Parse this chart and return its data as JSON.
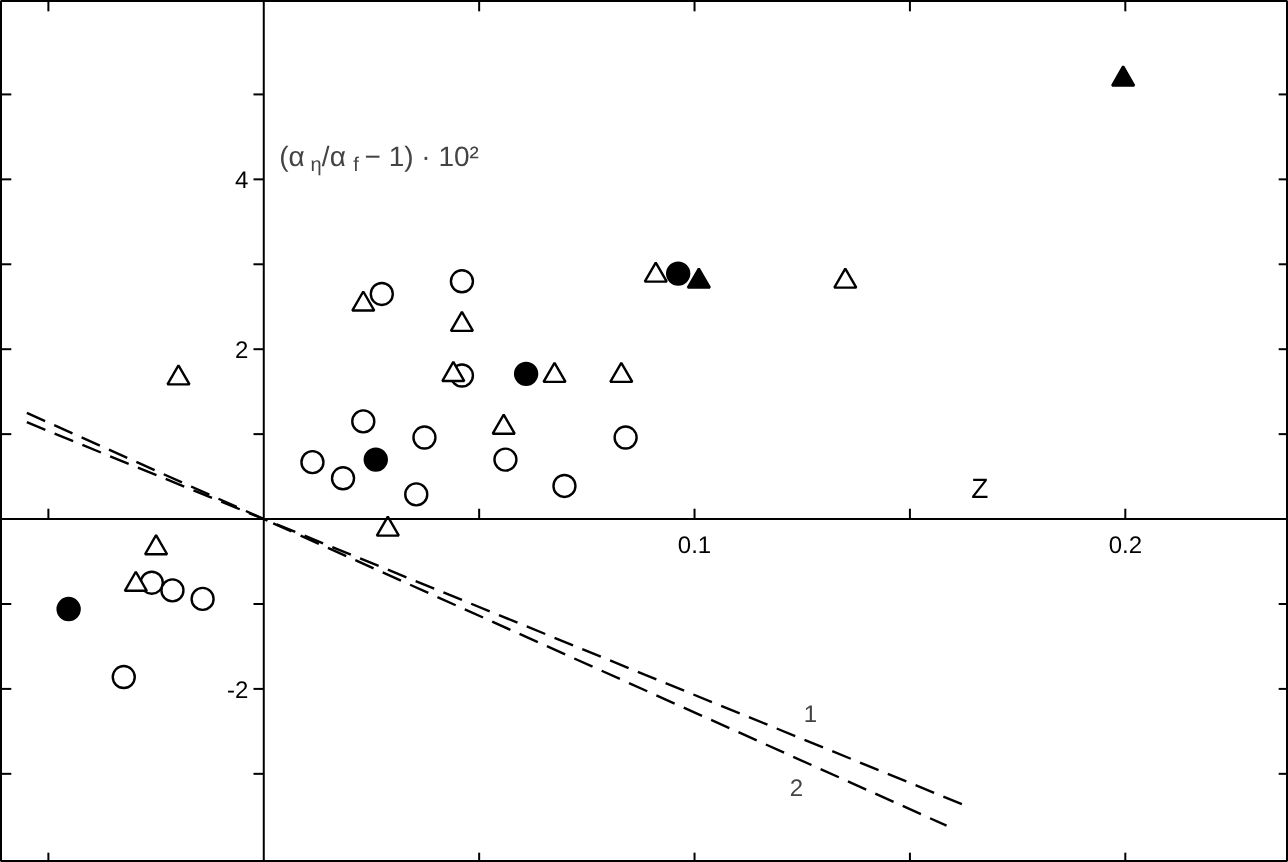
{
  "chart_data": {
    "type": "scatter",
    "xlabel": "Z",
    "ylabel": "(α$_{η}$/α$_{f}$ − 1) · 10²",
    "xlim": [
      -0.061,
      0.238
    ],
    "ylim": [
      -4.05,
      6.1
    ],
    "xticks": [
      {
        "value": -0.05,
        "label": null
      },
      {
        "value": 0.05,
        "label": null
      },
      {
        "value": 0.1,
        "label": "0.1"
      },
      {
        "value": 0.15,
        "label": null
      },
      {
        "value": 0.2,
        "label": "0.2"
      }
    ],
    "yticks": [
      {
        "value": -3,
        "label": null
      },
      {
        "value": -2,
        "label": "-2"
      },
      {
        "value": -1,
        "label": null
      },
      {
        "value": 1,
        "label": null
      },
      {
        "value": 2,
        "label": "2"
      },
      {
        "value": 3,
        "label": null
      },
      {
        "value": 4,
        "label": "4"
      },
      {
        "value": 5,
        "label": null
      }
    ],
    "grid": false,
    "series": [
      {
        "marker": "circle",
        "color": "#ffffff",
        "x": [
          0.0274,
          0.046,
          0.046,
          0.0231,
          0.0373,
          0.084,
          0.0113,
          0.0184,
          0.0561,
          0.0354,
          0.0698,
          -0.026,
          -0.0212,
          -0.0142,
          -0.0325
        ],
        "values": [
          2.65,
          2.8,
          1.69,
          1.15,
          0.96,
          0.96,
          0.67,
          0.48,
          0.7,
          0.29,
          0.39,
          -0.75,
          -0.84,
          -0.94,
          -1.86
        ]
      },
      {
        "marker": "triangle",
        "color": "#ffffff",
        "x": [
          -0.0198,
          0.0231,
          0.046,
          0.044,
          0.0675,
          0.083,
          0.0557,
          0.0288,
          -0.025,
          -0.0297,
          0.091,
          0.135
        ],
        "values": [
          1.66,
          2.53,
          2.29,
          1.7,
          1.69,
          1.69,
          1.08,
          -0.12,
          -0.34,
          -0.77,
          2.87,
          2.8
        ]
      },
      {
        "marker": "circle",
        "color": "#000000",
        "x": [
          0.0609,
          0.026,
          -0.0453,
          0.0962
        ],
        "values": [
          1.71,
          0.7,
          -1.06,
          2.89
        ]
      },
      {
        "marker": "triangle",
        "color": "#000000",
        "x": [
          0.101,
          0.1995
        ],
        "values": [
          2.8,
          5.18
        ]
      },
      {
        "type": "line",
        "name": "1",
        "line_style": "dashed",
        "color": "#000000",
        "x": [
          -0.055,
          0,
          0.1627
        ],
        "values": [
          1.14,
          0,
          -3.37
        ]
      },
      {
        "type": "line",
        "name": "2",
        "line_style": "dashed",
        "color": "#000000",
        "x": [
          -0.055,
          0,
          0.1585
        ],
        "values": [
          1.25,
          0,
          -3.61
        ]
      }
    ]
  }
}
